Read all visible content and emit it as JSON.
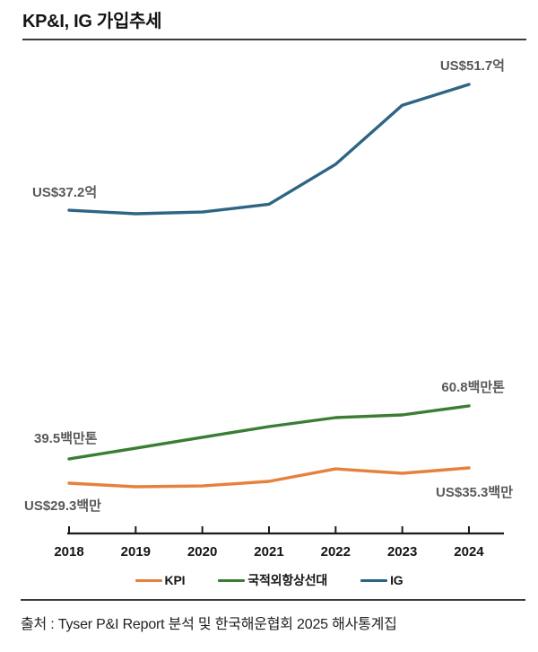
{
  "header": {
    "title": "KP&I, IG 가입추세"
  },
  "chart_data": {
    "type": "line",
    "categories": [
      "2018",
      "2019",
      "2020",
      "2021",
      "2022",
      "2023",
      "2024"
    ],
    "series": [
      {
        "name": "KPI",
        "unit": "US$백만",
        "color": "#e5813d",
        "values": [
          29.3,
          27.9,
          28.2,
          30.0,
          34.9,
          33.2,
          35.3
        ]
      },
      {
        "name": "국적외항상선대",
        "unit": "백만톤",
        "color": "#3a7d33",
        "values": [
          39.5,
          43.8,
          48.2,
          52.5,
          56.1,
          57.2,
          60.8
        ]
      },
      {
        "name": "IG",
        "unit": "US$억",
        "color": "#2e6584",
        "values": [
          37.2,
          36.8,
          37.0,
          37.9,
          42.5,
          49.3,
          51.7
        ]
      }
    ],
    "annotations": {
      "ig_start": {
        "text": "US$37.2억"
      },
      "ig_end": {
        "text": "US$51.7억"
      },
      "fleet_start": {
        "text": "39.5백만톤"
      },
      "fleet_end": {
        "text": "60.8백만톤"
      },
      "kpi_start": {
        "text": "US$29.3백만"
      },
      "kpi_end": {
        "text": "US$35.3백만"
      }
    },
    "legend": {
      "position": "bottom",
      "items": [
        "KPI",
        "국적외항상선대",
        "IG"
      ]
    },
    "grid": false,
    "xlabel": "",
    "ylabel": ""
  },
  "footer": {
    "source": "출처 : Tyser P&I Report 분석 및 한국해운협회 2025 해사통계집"
  },
  "colors": {
    "kpi_line": "#e5813d",
    "fleet_line": "#3a7d33",
    "ig_line": "#2e6584",
    "axis": "#1a1a1a",
    "annotation_text": "#595959",
    "divider": "#3a3a3a"
  }
}
